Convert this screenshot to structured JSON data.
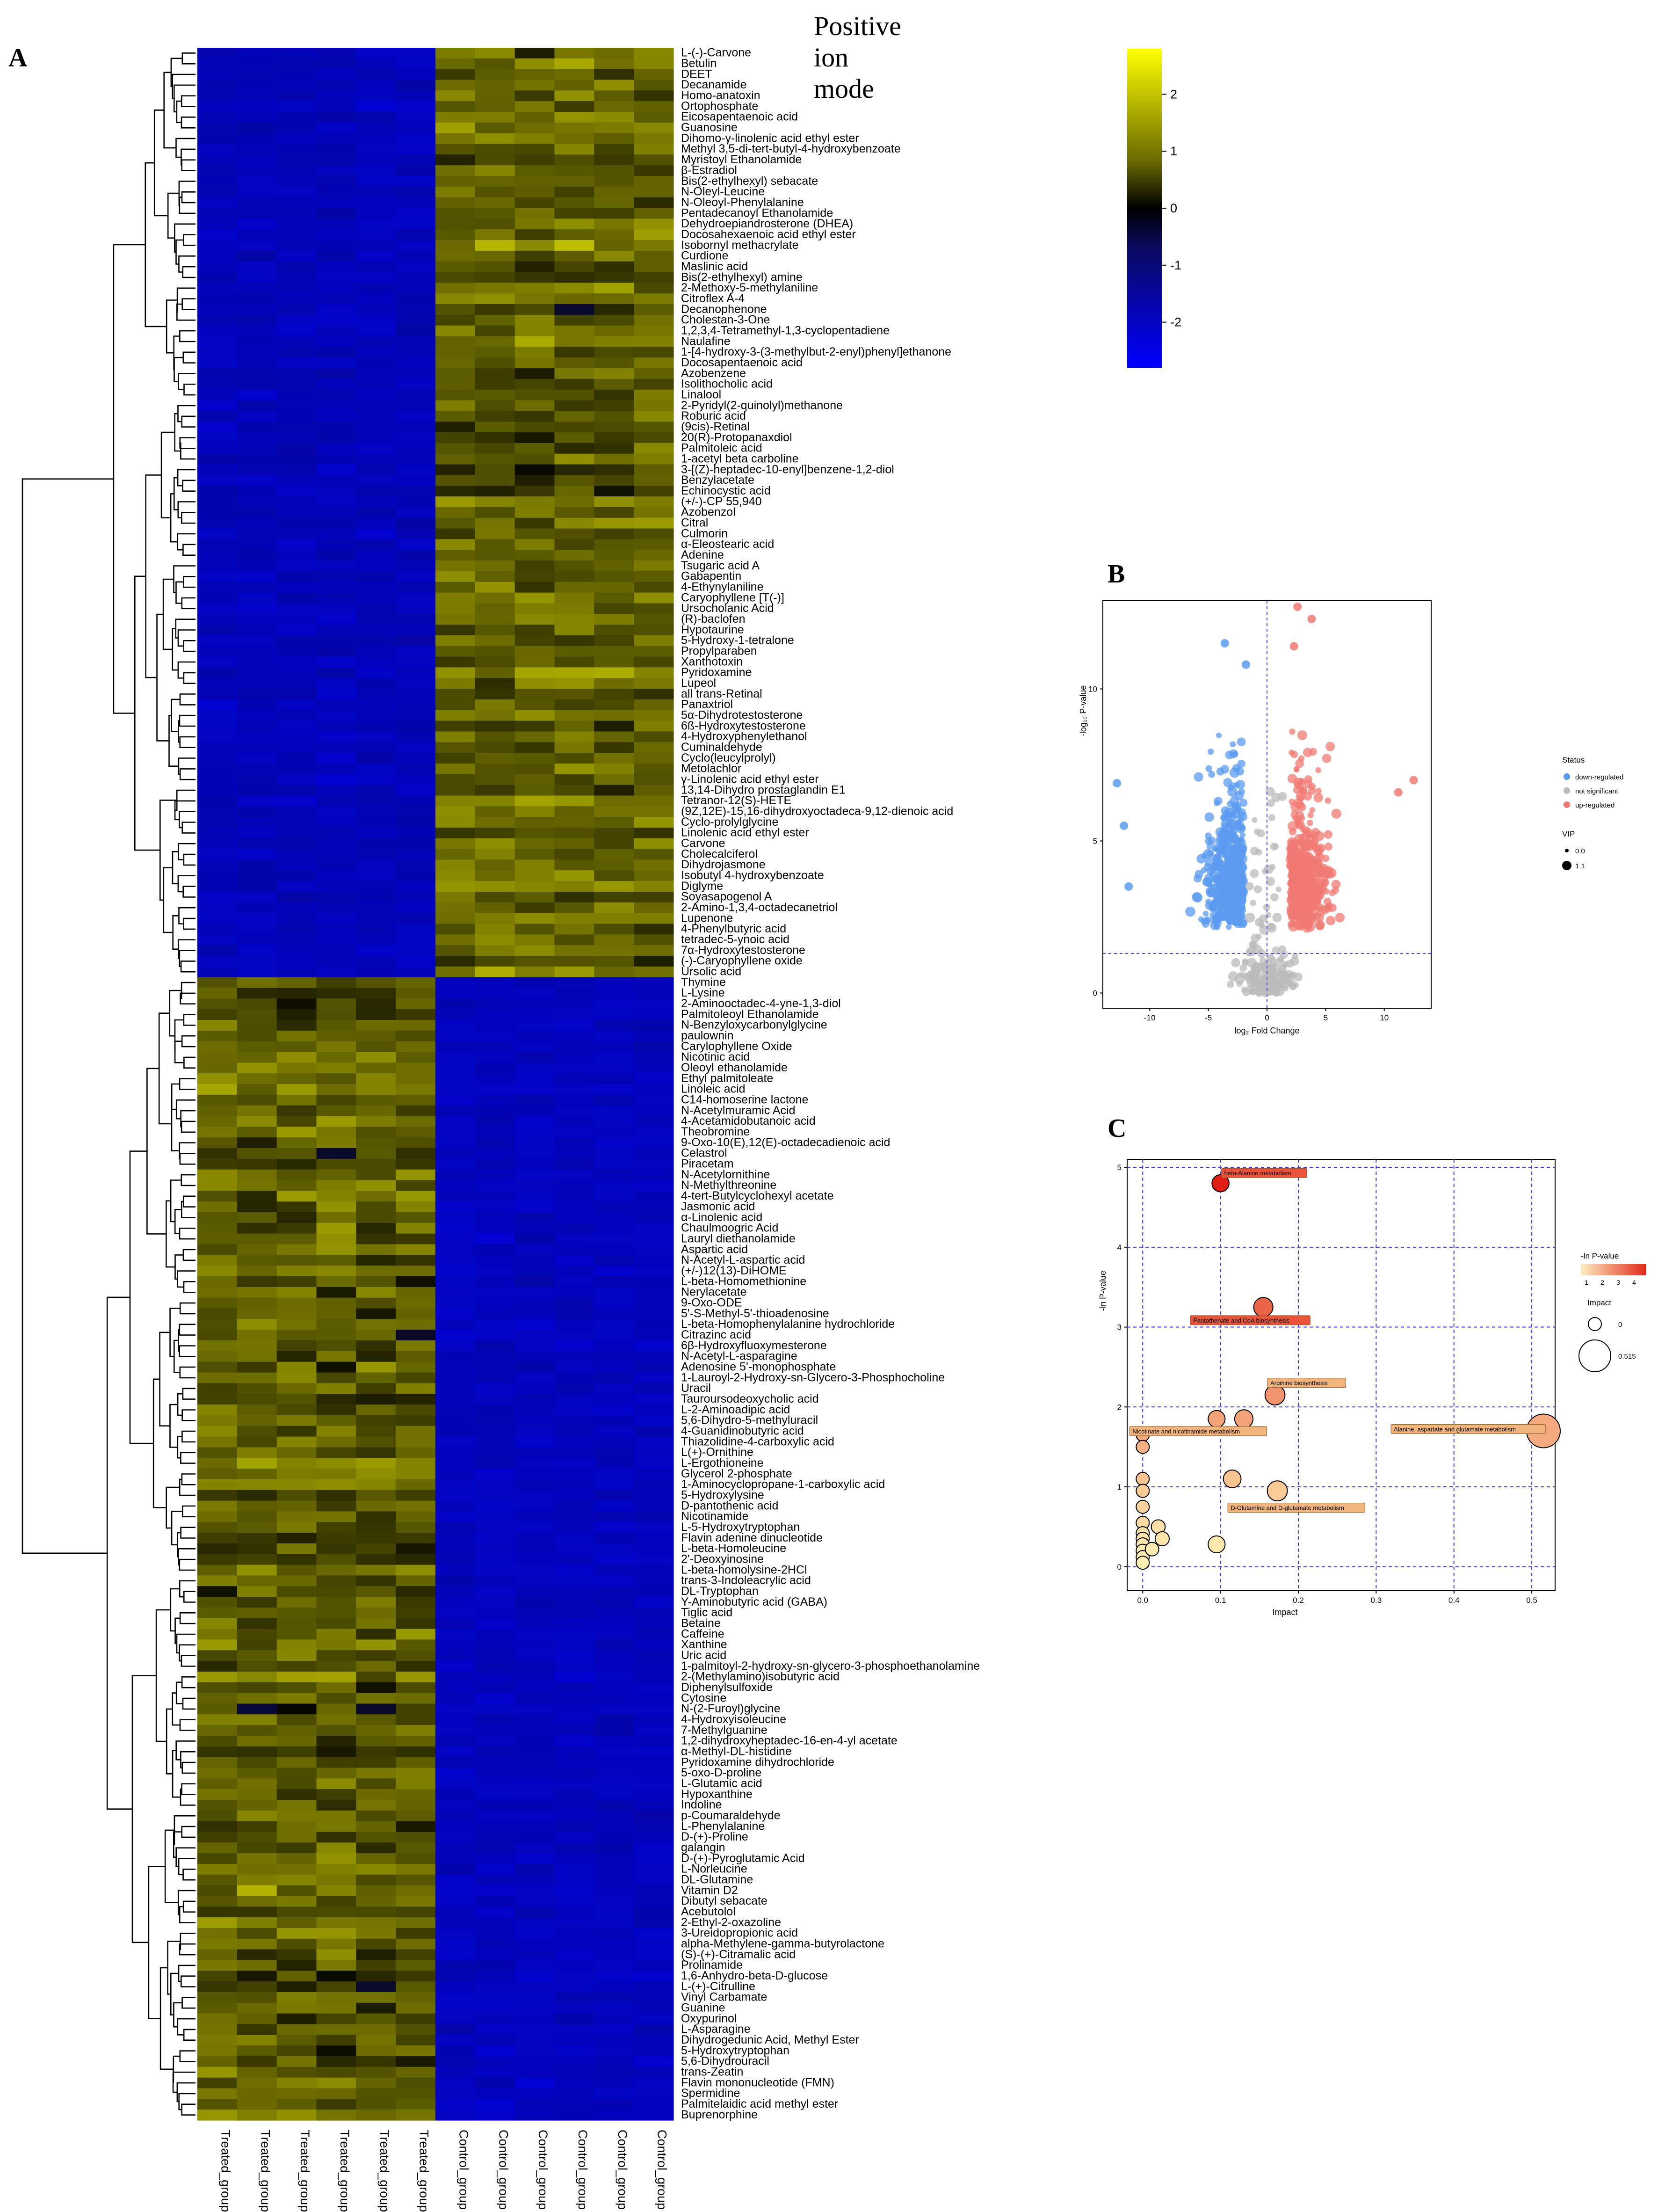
{
  "figure": {
    "title": "Positive ion mode",
    "panel_labels": [
      "A",
      "B",
      "C"
    ]
  },
  "chart_data": [
    {
      "type": "heatmap",
      "panel": "A",
      "title": "Positive ion mode",
      "columns": [
        "Treated_group",
        "Treated_group",
        "Treated_group",
        "Treated_group",
        "Treated_group",
        "Treated_group",
        "Control_group",
        "Control_group",
        "Control_group",
        "Control_group",
        "Control_group",
        "Control_group"
      ],
      "color_scale": {
        "min": -2.8,
        "max": 2.8,
        "ticks": [
          2,
          1,
          0,
          -1,
          -2
        ],
        "low_color": "#0000ff",
        "mid_color": "#000000",
        "high_color": "#ffff00",
        "background_color": "#101070"
      },
      "cluster_1_rows": [
        "L-(-)-Carvone",
        "Betulin",
        "DEET",
        "Decanamide",
        "Homo-anatoxin",
        "Ortophosphate",
        "Eicosapentaenoic acid",
        "Guanosine",
        "Dihomo-γ-linolenic acid ethyl ester",
        "Methyl 3,5-di-tert-butyl-4-hydroxybenzoate",
        "Myristoyl Ethanolamide",
        "β-Estradiol",
        "Bis(2-ethylhexyl) sebacate",
        "N-Oleyl-Leucine",
        "N-Oleoyl-Phenylalanine",
        "Pentadecanoyl Ethanolamide",
        "Dehydroepiandrosterone (DHEA)",
        "Docosahexaenoic acid ethyl ester",
        "Isobornyl methacrylate",
        "Curdione",
        "Maslinic acid",
        "Bis(2-ethylhexyl) amine",
        "2-Methoxy-5-methylaniline",
        "Citroflex A-4",
        "Decanophenone",
        "Cholestan-3-One",
        "1,2,3,4-Tetramethyl-1,3-cyclopentadiene",
        "Naulafine",
        "1-[4-hydroxy-3-(3-methylbut-2-enyl)phenyl]ethanone",
        "Docosapentaenoic acid",
        "Azobenzene",
        "Isolithocholic acid",
        "Linalool",
        "2-Pyridyl(2-quinolyl)methanone",
        "Roburic acid",
        "(9cis)-Retinal",
        "20(R)-Protopanaxdiol",
        "Palmitoleic acid",
        "1-acetyl beta carboline",
        "3-[(Z)-heptadec-10-enyl]benzene-1,2-diol",
        "Benzylacetate",
        "Echinocystic acid",
        "(+/-)-CP 55,940",
        "Azobenzol",
        "Citral",
        "Culmorin",
        "α-Eleostearic acid",
        "Adenine",
        "Tsugaric acid A",
        "Gabapentin",
        "4-Ethynylaniline",
        "Caryophyllene [T(-)]",
        "Ursocholanic Acid",
        "(R)-baclofen",
        "Hypotaurine",
        "5-Hydroxy-1-tetralone",
        "Propylparaben",
        "Xanthotoxin",
        "Pyridoxamine",
        "Lupeol",
        "all trans-Retinal",
        "Panaxtriol",
        "5α-Dihydrotestosterone",
        "6ß-Hydroxytestosterone",
        "4-Hydroxyphenylethanol",
        "Cuminaldehyde",
        "Cyclo(leucylprolyl)",
        "Metolachlor",
        "γ-Linolenic acid ethyl ester",
        "13,14-Dihydro prostaglandin E1",
        "Tetranor-12(S)-HETE",
        "(9Z,12E)-15,16-dihydroxyoctadeca-9,12-dienoic acid",
        "Cyclo-prolylglycine",
        "Linolenic acid ethyl ester",
        "Carvone",
        "Cholecalciferol",
        "Dihydrojasmone",
        "Isobutyl 4-hydroxybenzoate",
        "Diglyme",
        "Soyasapogenol A",
        "2-Amino-1,3,4-octadecanetriol",
        "Lupenone",
        "4-Phenylbutyric acid",
        "tetradec-5-ynoic acid",
        "7α-Hydroxytestosterone",
        "(-)-Caryophyllene oxide",
        "Ursolic acid"
      ],
      "cluster_2_rows": [
        "Thymine",
        "L-Lysine",
        "2-Aminooctadec-4-yne-1,3-diol",
        "Palmitoleoyl Ethanolamide",
        "N-Benzyloxycarbonylglycine",
        "paulownin",
        "Carylophyllene Oxide",
        "Nicotinic acid",
        "Oleoyl ethanolamide",
        "Ethyl palmitoleate",
        "Linoleic acid",
        "C14-homoserine lactone",
        "N-Acetylmuramic Acid",
        "4-Acetamidobutanoic acid",
        "Theobromine",
        "9-Oxo-10(E),12(E)-octadecadienoic acid",
        "Celastrol",
        "Piracetam",
        "N-Acetylornithine",
        "N-Methylthreonine",
        "4-tert-Butylcyclohexyl acetate",
        "Jasmonic acid",
        "α-Linolenic acid",
        "Chaulmoogric Acid",
        "Lauryl diethanolamide",
        "Aspartic acid",
        "N-Acetyl-L-aspartic acid",
        "(+/-)12(13)-DiHOME",
        "L-beta-Homomethionine",
        "Nerylacetate",
        "9-Oxo-ODE",
        "5'-S-Methyl-5'-thioadenosine",
        "L-beta-Homophenylalanine hydrochloride",
        "Citrazinc acid",
        "6β-Hydroxyfluoxymesterone",
        "N-Acetyl-L-asparagine",
        "Adenosine 5'-monophosphate",
        "1-Lauroyl-2-Hydroxy-sn-Glycero-3-Phosphocholine",
        "Uracil",
        "Tauroursodeoxycholic acid",
        "L-2-Aminoadipic acid",
        "5,6-Dihydro-5-methyluracil",
        "4-Guanidinobutyric acid",
        "Thiazolidine-4-carboxylic acid",
        "L(+)-Ornithine",
        "L-Ergothioneine",
        "Glycerol 2-phosphate",
        "1-Aminocyclopropane-1-carboxylic acid",
        "5-Hydroxylysine",
        "D-pantothenic acid",
        "Nicotinamide",
        "L-5-Hydroxytryptophan",
        "Flavin adenine dinucleotide",
        "L-beta-Homoleucine",
        "2'-Deoxyinosine",
        "L-beta-homolysine-2HCl",
        "trans-3-Indoleacrylic acid",
        "DL-Tryptophan",
        "Y-Aminobutyric acid (GABA)",
        "Tiglic acid",
        "Betaine",
        "Caffeine",
        "Xanthine",
        "Uric acid",
        "1-palmitoyl-2-hydroxy-sn-glycero-3-phosphoethanolamine",
        "2-(Methylamino)isobutyric acid",
        "Diphenylsulfoxide",
        "Cytosine",
        "N-(2-Furoyl)glycine",
        "4-Hydroxyisoleucine",
        "7-Methylguanine",
        "1,2-dihydroxyheptadec-16-en-4-yl acetate",
        "α-Methyl-DL-histidine",
        "Pyridoxamine dihydrochloride",
        "5-oxo-D-proline",
        "L-Glutamic acid",
        "Hypoxanthine",
        "Indoline",
        "p-Coumaraldehyde",
        "L-Phenylalanine",
        "D-(+)-Proline",
        "galangin",
        "D-(+)-Pyroglutamic Acid",
        "L-Norleucine",
        "DL-Glutamine",
        "Vitamin D2",
        "Dibutyl sebacate",
        "Acebutolol",
        "2-Ethyl-2-oxazoline",
        "3-Ureidopropionic acid",
        "alpha-Methylene-gamma-butyrolactone",
        "(S)-(+)-Citramalic acid",
        "Prolinamide",
        "1,6-Anhydro-beta-D-glucose",
        "L-(+)-Citrulline",
        "Vinyl Carbamate",
        "Guanine",
        "Oxypurinol",
        "L-Asparagine",
        "Dihydrogedunic Acid, Methyl Ester",
        "5-Hydroxytryptophan",
        "5,6-Dihydrouracil",
        "trans-Zeatin",
        "Flavin mononucleotide (FMN)",
        "Spermidine",
        "Palmitelaidic acid methyl ester",
        "Buprenorphine"
      ],
      "cluster_pattern": "cluster 1: low in Treated_group (≈ -2), high in Control_group (≈ +1); cluster 2: high in Treated_group (≈ +1), low in Control_group (≈ -2)"
    },
    {
      "type": "scatter",
      "panel": "B",
      "subtype": "volcano",
      "xlabel": "log₂ Fold Change",
      "ylabel": "-log₁₀ P-value",
      "xlim": [
        -14,
        14
      ],
      "ylim": [
        -0.5,
        12.9
      ],
      "xticks": [
        -10,
        -5,
        0,
        5,
        10
      ],
      "yticks": [
        0,
        5,
        10
      ],
      "threshold_x": 0,
      "threshold_y": 1.3,
      "legend": {
        "status_title": "Status",
        "status": [
          {
            "label": "down-regulated",
            "color": "#5b9bf0"
          },
          {
            "label": "not significant",
            "color": "#bbbbbb"
          },
          {
            "label": "up-regulated",
            "color": "#f07a73"
          }
        ],
        "vip_title": "VIP",
        "vip": [
          "0.0",
          "1.1"
        ]
      },
      "groups": [
        {
          "status": "down-regulated",
          "approx_count": 1500,
          "x_range": [
            -13,
            -0.5
          ],
          "y_range": [
            1.3,
            11.5
          ],
          "notable_points": [
            [
              -12.8,
              6.9
            ],
            [
              -12.2,
              5.5
            ],
            [
              -11.8,
              3.5
            ],
            [
              -3.6,
              11.5
            ],
            [
              -1.8,
              10.8
            ]
          ]
        },
        {
          "status": "up-regulated",
          "approx_count": 1500,
          "x_range": [
            0.5,
            12.7
          ],
          "y_range": [
            1.3,
            12.8
          ],
          "notable_points": [
            [
              12.5,
              7.0
            ],
            [
              11.2,
              6.6
            ],
            [
              2.6,
              12.7
            ],
            [
              3.8,
              12.3
            ],
            [
              2.3,
              11.4
            ]
          ]
        },
        {
          "status": "not significant",
          "approx_count": 500,
          "x_range": [
            -8,
            8
          ],
          "y_range": [
            0,
            9.5
          ]
        }
      ]
    },
    {
      "type": "scatter",
      "panel": "C",
      "subtype": "pathway bubble",
      "xlabel": "Impact",
      "ylabel": "-ln P-value",
      "xlim": [
        -0.02,
        0.53
      ],
      "ylim": [
        -0.3,
        5.1
      ],
      "xticks": [
        0.0,
        0.1,
        0.2,
        0.3,
        0.4,
        0.5
      ],
      "yticks": [
        0,
        1,
        2,
        3,
        4,
        5
      ],
      "legend": {
        "color_title": "-ln P-value",
        "color_ticks": [
          1,
          2,
          3,
          4
        ],
        "size_title": "Impact",
        "size_ticks": [
          "0",
          "0.515"
        ]
      },
      "points": [
        {
          "pathway": "beta-Alanine metabolism",
          "impact": 0.1,
          "neg_ln_p": 4.8,
          "labeled": true
        },
        {
          "pathway": "Pantothenate and CoA biosynthesis",
          "impact": 0.155,
          "neg_ln_p": 3.25,
          "labeled": true
        },
        {
          "pathway": "Arginine biosynthesis",
          "impact": 0.17,
          "neg_ln_p": 2.15,
          "labeled": true
        },
        {
          "pathway": "Nicotinate and nicotinamide metabolism",
          "impact": 0.095,
          "neg_ln_p": 1.85,
          "labeled": true
        },
        {
          "pathway": "",
          "impact": 0.13,
          "neg_ln_p": 1.85,
          "labeled": false
        },
        {
          "pathway": "Alanine, aspartate and glutamate metabolism",
          "impact": 0.515,
          "neg_ln_p": 1.7,
          "labeled": true
        },
        {
          "pathway": "",
          "impact": 0.115,
          "neg_ln_p": 1.1,
          "labeled": false
        },
        {
          "pathway": "D-Glutamine and D-glutamate metabolism",
          "impact": 0.173,
          "neg_ln_p": 0.95,
          "labeled": true
        },
        {
          "pathway": "",
          "impact": 0.095,
          "neg_ln_p": 0.28,
          "labeled": false
        },
        {
          "pathway": "",
          "impact": 0.0,
          "neg_ln_p": 1.65,
          "labeled": false
        },
        {
          "pathway": "",
          "impact": 0.0,
          "neg_ln_p": 1.5,
          "labeled": false
        },
        {
          "pathway": "",
          "impact": 0.0,
          "neg_ln_p": 1.1,
          "labeled": false
        },
        {
          "pathway": "",
          "impact": 0.0,
          "neg_ln_p": 0.95,
          "labeled": false
        },
        {
          "pathway": "",
          "impact": 0.0,
          "neg_ln_p": 0.75,
          "labeled": false
        },
        {
          "pathway": "",
          "impact": 0.0,
          "neg_ln_p": 0.55,
          "labeled": false
        },
        {
          "pathway": "",
          "impact": 0.0,
          "neg_ln_p": 0.42,
          "labeled": false
        },
        {
          "pathway": "",
          "impact": 0.0,
          "neg_ln_p": 0.35,
          "labeled": false
        },
        {
          "pathway": "",
          "impact": 0.0,
          "neg_ln_p": 0.28,
          "labeled": false
        },
        {
          "pathway": "",
          "impact": 0.0,
          "neg_ln_p": 0.2,
          "labeled": false
        },
        {
          "pathway": "",
          "impact": 0.0,
          "neg_ln_p": 0.12,
          "labeled": false
        },
        {
          "pathway": "",
          "impact": 0.0,
          "neg_ln_p": 0.05,
          "labeled": false
        },
        {
          "pathway": "",
          "impact": 0.02,
          "neg_ln_p": 0.5,
          "labeled": false
        },
        {
          "pathway": "",
          "impact": 0.025,
          "neg_ln_p": 0.35,
          "labeled": false
        },
        {
          "pathway": "",
          "impact": 0.012,
          "neg_ln_p": 0.22,
          "labeled": false
        }
      ]
    }
  ]
}
